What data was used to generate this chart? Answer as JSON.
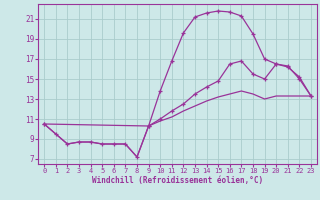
{
  "bg_color": "#cde8e8",
  "line_color": "#993399",
  "grid_color": "#aacccc",
  "xlabel": "Windchill (Refroidissement éolien,°C)",
  "xlim": [
    -0.5,
    23.5
  ],
  "ylim": [
    6.5,
    22.5
  ],
  "xticks": [
    0,
    1,
    2,
    3,
    4,
    5,
    6,
    7,
    8,
    9,
    10,
    11,
    12,
    13,
    14,
    15,
    16,
    17,
    18,
    19,
    20,
    21,
    22,
    23
  ],
  "yticks": [
    7,
    9,
    11,
    13,
    15,
    17,
    19,
    21
  ],
  "curve1_x": [
    0,
    1,
    2,
    3,
    4,
    5,
    6,
    7,
    8,
    9,
    10,
    11,
    12,
    13,
    14,
    15,
    16,
    17,
    18,
    19,
    20,
    21,
    22,
    23
  ],
  "curve1_y": [
    10.5,
    9.5,
    8.5,
    8.7,
    8.7,
    8.5,
    8.5,
    8.5,
    7.2,
    10.3,
    13.8,
    16.8,
    19.6,
    21.2,
    21.6,
    21.8,
    21.7,
    21.3,
    19.5,
    17.0,
    16.5,
    16.2,
    15.2,
    13.3
  ],
  "curve2_x": [
    0,
    9,
    10,
    11,
    12,
    13,
    14,
    15,
    16,
    17,
    18,
    19,
    20,
    21,
    22,
    23
  ],
  "curve2_y": [
    10.5,
    10.3,
    11.0,
    11.8,
    12.5,
    13.5,
    14.2,
    14.8,
    16.5,
    16.8,
    15.5,
    15.0,
    16.5,
    16.3,
    15.0,
    13.3
  ],
  "curve3_x": [
    0,
    1,
    2,
    3,
    4,
    5,
    6,
    7,
    8,
    9,
    10,
    11,
    12,
    13,
    14,
    15,
    16,
    17,
    18,
    19,
    20,
    21,
    22,
    23
  ],
  "curve3_y": [
    10.5,
    9.5,
    8.5,
    8.7,
    8.7,
    8.5,
    8.5,
    8.5,
    7.2,
    10.3,
    10.8,
    11.2,
    11.8,
    12.3,
    12.8,
    13.2,
    13.5,
    13.8,
    13.5,
    13.0,
    13.3,
    13.3,
    13.3,
    13.3
  ]
}
